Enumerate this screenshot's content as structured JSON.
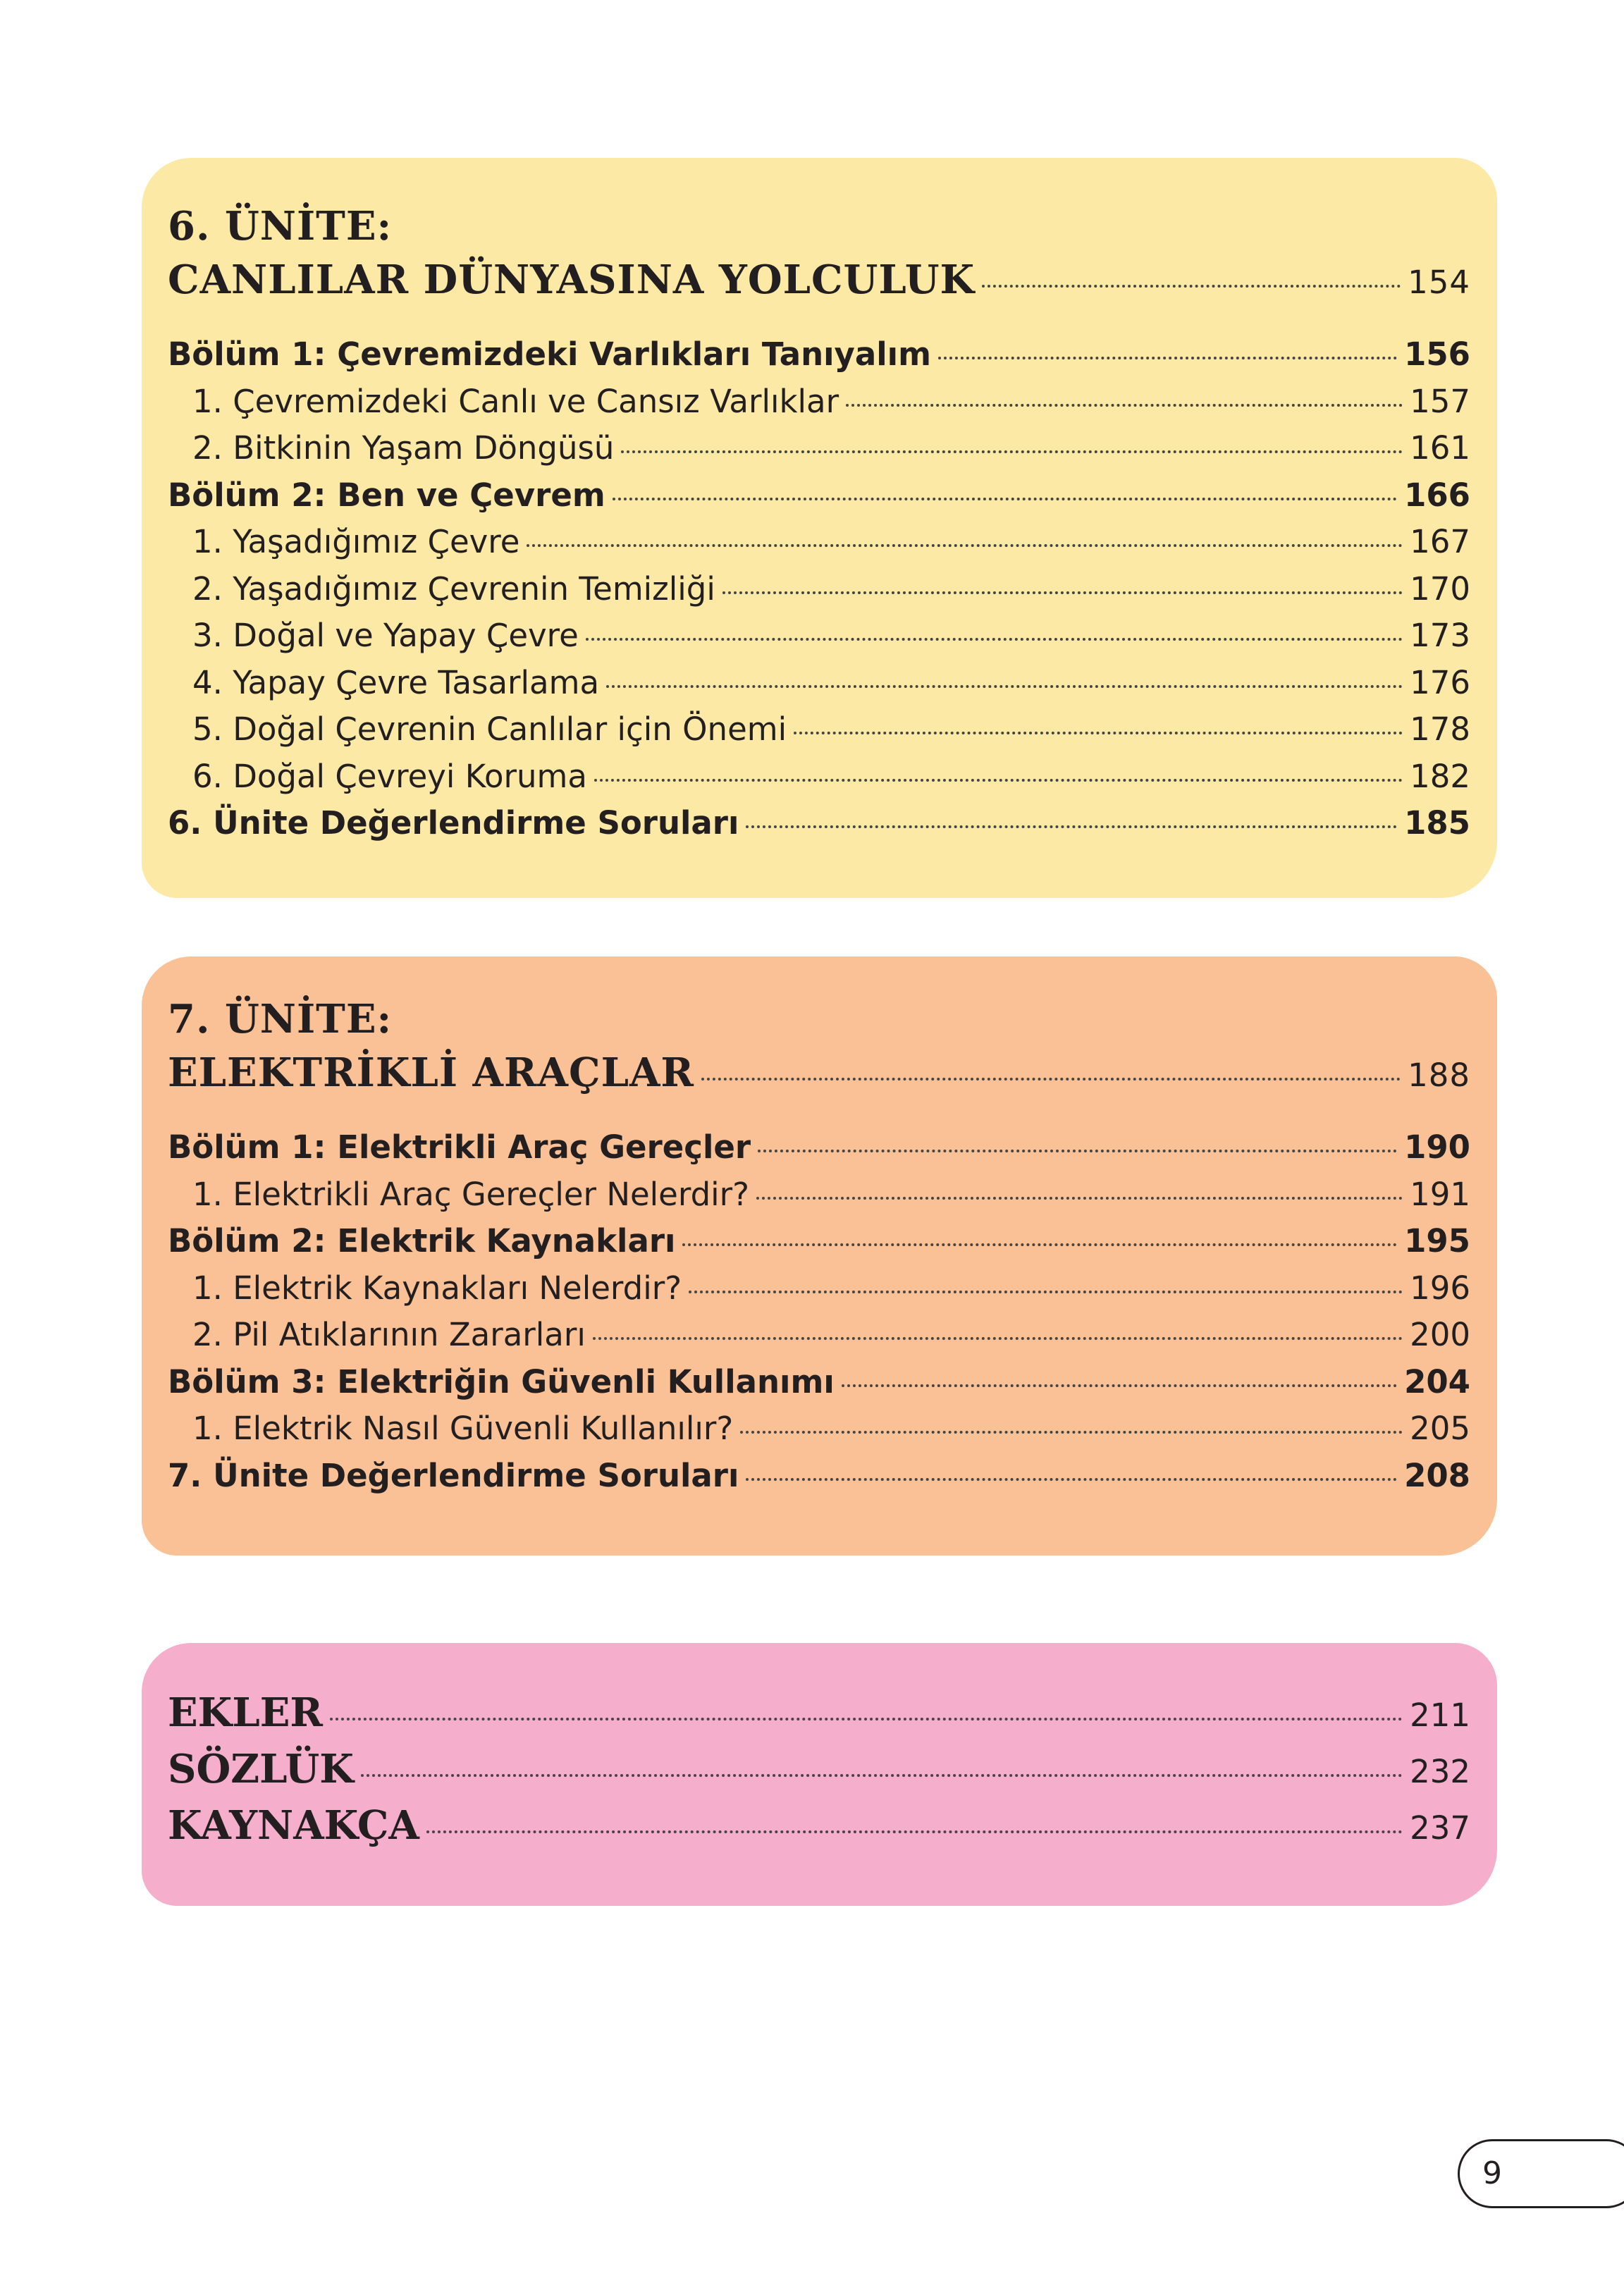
{
  "units": [
    {
      "label": "6. ÜNİTE:",
      "title": "CANLILAR DÜNYASINA YOLCULUK",
      "page": 154,
      "chapters": [
        {
          "title": "Bölüm 1: Çevremizdeki Varlıkları Tanıyalım",
          "page": 156,
          "items": [
            {
              "text": "1. Çevremizdeki Canlı ve Cansız Varlıklar",
              "page": 157
            },
            {
              "text": "2. Bitkinin Yaşam Döngüsü",
              "page": 161
            }
          ]
        },
        {
          "title": "Bölüm 2: Ben ve Çevrem",
          "page": 166,
          "items": [
            {
              "text": "1. Yaşadığımız Çevre",
              "page": 167
            },
            {
              "text": "2. Yaşadığımız Çevrenin Temizliği",
              "page": 170
            },
            {
              "text": "3. Doğal ve Yapay Çevre",
              "page": 173
            },
            {
              "text": "4. Yapay Çevre Tasarlama",
              "page": 176
            },
            {
              "text": "5. Doğal Çevrenin Canlılar için Önemi",
              "page": 178
            },
            {
              "text": "6. Doğal Çevreyi Koruma",
              "page": 182
            }
          ]
        }
      ],
      "review": {
        "text": "6. Ünite Değerlendirme Soruları",
        "page": 185
      }
    },
    {
      "label": "7. ÜNİTE:",
      "title": "ELEKTRİKLİ ARAÇLAR",
      "page": 188,
      "chapters": [
        {
          "title": "Bölüm 1: Elektrikli Araç Gereçler",
          "page": 190,
          "items": [
            {
              "text": "1. Elektrikli Araç Gereçler Nelerdir?",
              "page": 191
            }
          ]
        },
        {
          "title": "Bölüm 2: Elektrik Kaynakları",
          "page": 195,
          "items": [
            {
              "text": "1. Elektrik Kaynakları Nelerdir?",
              "page": 196
            },
            {
              "text": "2. Pil Atıklarının Zararları",
              "page": 200
            }
          ]
        },
        {
          "title": "Bölüm 3: Elektriğin Güvenli Kullanımı",
          "page": 204,
          "items": [
            {
              "text": "1. Elektrik Nasıl Güvenli Kullanılır?",
              "page": 205
            }
          ]
        }
      ],
      "review": {
        "text": "7. Ünite Değerlendirme Soruları",
        "page": 208
      }
    }
  ],
  "appendix": [
    {
      "text": "EKLER",
      "page": 211
    },
    {
      "text": "SÖZLÜK",
      "page": 232
    },
    {
      "text": "KAYNAKÇA",
      "page": 237
    }
  ],
  "page_number": 9
}
